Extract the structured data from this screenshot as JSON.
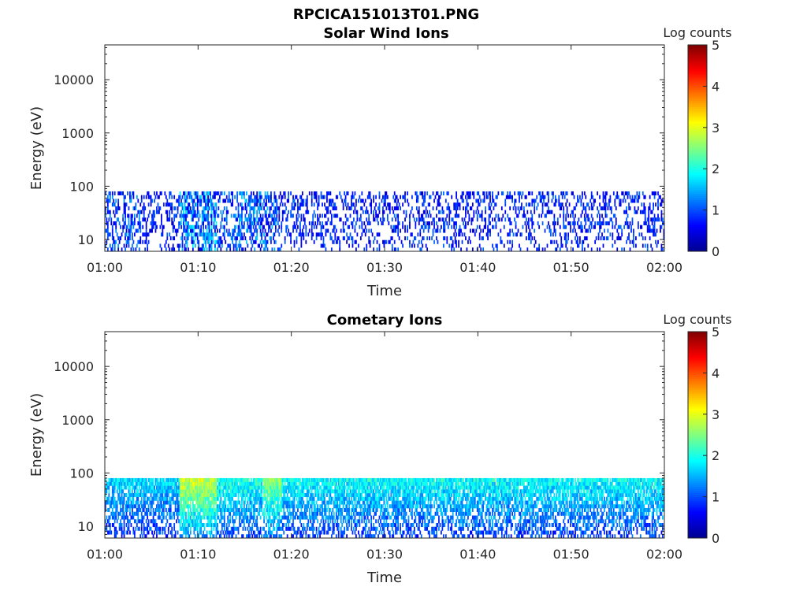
{
  "figure_title": "RPCICA151013T01.PNG",
  "colormap": [
    "#00008f",
    "#0000ff",
    "#0080ff",
    "#00ffff",
    "#80ff80",
    "#ffff00",
    "#ff8000",
    "#ff0000",
    "#800000"
  ],
  "chart_data": [
    {
      "type": "heatmap",
      "title": "Solar Wind Ions",
      "xlabel": "Time",
      "ylabel": "Energy (eV)",
      "x_ticks": [
        "01:00",
        "01:10",
        "01:20",
        "01:30",
        "01:40",
        "01:50",
        "02:00"
      ],
      "x_range_minutes": [
        0,
        60
      ],
      "y_scale": "log",
      "y_ticks": [
        "10",
        "100",
        "1000",
        "10000"
      ],
      "y_range": [
        6,
        45000
      ],
      "data_energy_range": [
        6,
        80
      ],
      "colorbar": {
        "label": "Log counts",
        "range": [
          0,
          5
        ],
        "ticks": [
          "0",
          "1",
          "2",
          "3",
          "4",
          "5"
        ]
      },
      "activity_profile": [
        {
          "t_start": 0,
          "t_end": 4,
          "level": 0.7
        },
        {
          "t_start": 4,
          "t_end": 8,
          "level": 0.3
        },
        {
          "t_start": 8,
          "t_end": 12,
          "level": 1.3
        },
        {
          "t_start": 12,
          "t_end": 14,
          "level": 0.6
        },
        {
          "t_start": 14,
          "t_end": 16.5,
          "level": 1.0
        },
        {
          "t_start": 16.5,
          "t_end": 18.5,
          "level": 0.9
        },
        {
          "t_start": 18.5,
          "t_end": 60,
          "level": 0.35
        }
      ]
    },
    {
      "type": "heatmap",
      "title": "Cometary Ions",
      "xlabel": "Time",
      "ylabel": "Energy (eV)",
      "x_ticks": [
        "01:00",
        "01:10",
        "01:20",
        "01:30",
        "01:40",
        "01:50",
        "02:00"
      ],
      "x_range_minutes": [
        0,
        60
      ],
      "y_scale": "log",
      "y_ticks": [
        "10",
        "100",
        "1000",
        "10000"
      ],
      "y_range": [
        6,
        45000
      ],
      "data_energy_range": [
        6,
        80
      ],
      "colorbar": {
        "label": "Log counts",
        "range": [
          0,
          5
        ],
        "ticks": [
          "0",
          "1",
          "2",
          "3",
          "4",
          "5"
        ]
      },
      "activity_profile": [
        {
          "t_start": 0,
          "t_end": 8,
          "level": 1.6
        },
        {
          "t_start": 8,
          "t_end": 12,
          "level": 2.7
        },
        {
          "t_start": 12,
          "t_end": 17,
          "level": 1.9
        },
        {
          "t_start": 17,
          "t_end": 19,
          "level": 2.4
        },
        {
          "t_start": 19,
          "t_end": 60,
          "level": 1.8
        }
      ]
    }
  ]
}
